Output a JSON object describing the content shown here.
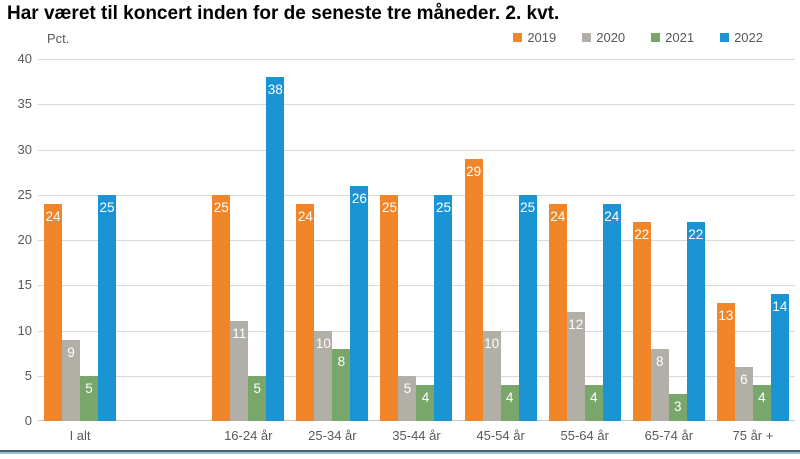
{
  "chart_data": {
    "type": "bar",
    "title": "Har været til koncert inden for de seneste tre måneder. 2. kvt.",
    "ylabel": "Pct.",
    "xlabel": "",
    "ylim": [
      0,
      40
    ],
    "ytick_step": 5,
    "grid": true,
    "legend_position": "top-right",
    "bar_value_labels": true,
    "categories": [
      "I alt",
      "16-24 år",
      "25-34 år",
      "35-44 år",
      "45-54 år",
      "55-64 år",
      "65-74 år",
      "75 år +"
    ],
    "series": [
      {
        "name": "2019",
        "color": "#F08529",
        "values": [
          24,
          25,
          24,
          25,
          29,
          24,
          22,
          13
        ]
      },
      {
        "name": "2020",
        "color": "#B2AFA6",
        "values": [
          9,
          11,
          10,
          5,
          10,
          12,
          8,
          6
        ]
      },
      {
        "name": "2021",
        "color": "#79A76B",
        "values": [
          5,
          5,
          8,
          4,
          4,
          4,
          3,
          4
        ]
      },
      {
        "name": "2022",
        "color": "#1A94D2",
        "values": [
          25,
          38,
          26,
          25,
          25,
          24,
          22,
          14
        ]
      }
    ],
    "layout": {
      "spacer_slot_after_category_index": 0,
      "gridline_color": "#D9D9D9",
      "baseline_color": "#C8C7C0",
      "axis_text_color": "#595959",
      "value_label_color": "#FFFFFF"
    }
  },
  "footer": {
    "accent_line_colors": [
      "#3F6272",
      "#A3BBC5"
    ]
  }
}
